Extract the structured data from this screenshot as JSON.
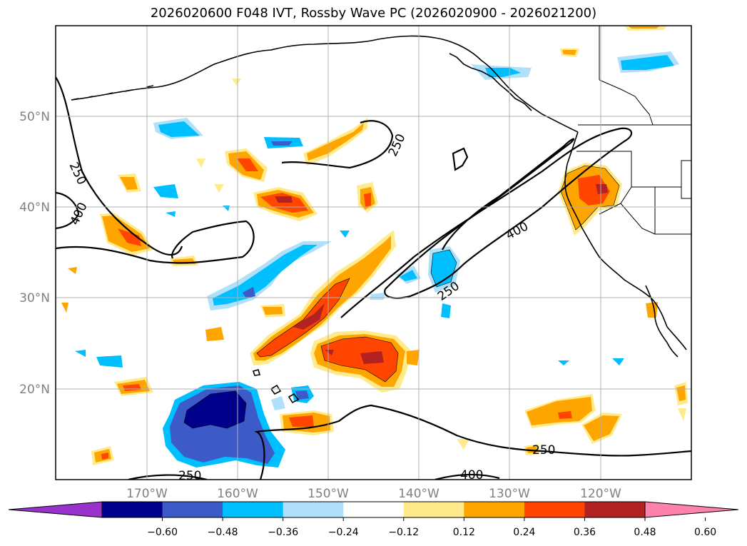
{
  "title": "2026020600 F048 IVT, Rossby Wave PC (2026020900 - 2026021200)",
  "longitude_labels": [
    "170°W",
    "160°W",
    "150°W",
    "140°W",
    "130°W",
    "120°W"
  ],
  "latitude_labels": [
    "50°N",
    "40°N",
    "30°N",
    "20°N"
  ],
  "contour_labels": [
    "250",
    "400",
    "250",
    "400",
    "250",
    "250",
    "400",
    "250"
  ],
  "colorbar": {
    "ticks": [
      "−0.60",
      "−0.48",
      "−0.36",
      "−0.24",
      "−0.12",
      "0.12",
      "0.24",
      "0.36",
      "0.48",
      "0.60"
    ],
    "colors": [
      "#9932cc",
      "#00008b",
      "#3c5ac8",
      "#00bfff",
      "#b0e0fa",
      "#ffffff",
      "#ffeb8c",
      "#ffa500",
      "#ff4500",
      "#b22222",
      "#ff82ab"
    ]
  },
  "colors": {
    "coast": "#000000",
    "grid": "#b0b0b0"
  }
}
